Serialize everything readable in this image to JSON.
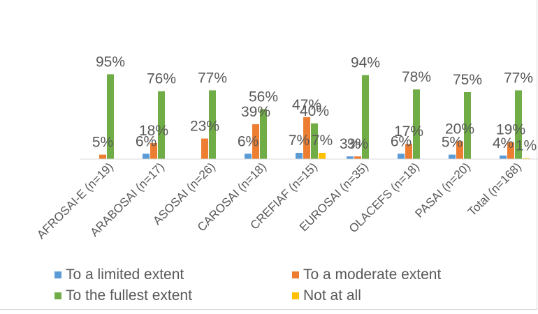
{
  "chart_data": {
    "type": "bar",
    "categories": [
      "AFROSAI-E (n=19)",
      "ARABOSAI (n=17)",
      "ASOSAI (n=26)",
      "CAROSAI (n=18)",
      "CREFIAF (n=15)",
      "EUROSAI (n=35)",
      "OLACEFS (n=18)",
      "PASAI (n=20)",
      "Total (n=168)"
    ],
    "ylim": [
      0,
      100
    ],
    "grid": false,
    "legend_position": "bottom",
    "series": [
      {
        "name": "To a limited extent",
        "color": "#5b9bd5",
        "values": [
          0,
          6,
          0,
          6,
          7,
          3,
          6,
          5,
          4
        ],
        "labels": [
          "",
          "6%",
          "",
          "6%",
          "7%",
          "3%",
          "6%",
          "5%",
          "4%"
        ]
      },
      {
        "name": "To a moderate extent",
        "color": "#ed7d31",
        "values": [
          5,
          18,
          23,
          39,
          47,
          3,
          17,
          20,
          19
        ],
        "labels": [
          "5%",
          "18%",
          "23%",
          "39%",
          "47%",
          "3%",
          "17%",
          "20%",
          "19%"
        ]
      },
      {
        "name": "To the fullest extent",
        "color": "#70ad47",
        "values": [
          95,
          76,
          77,
          56,
          40,
          94,
          78,
          75,
          77
        ],
        "labels": [
          "95%",
          "76%",
          "77%",
          "56%",
          "40%",
          "94%",
          "78%",
          "75%",
          "77%"
        ]
      },
      {
        "name": "Not at all",
        "color": "#ffc000",
        "values": [
          0,
          0,
          0,
          0,
          7,
          0,
          0,
          0,
          1
        ],
        "labels": [
          "",
          "",
          "",
          "",
          "7%",
          "",
          "",
          "",
          "1%"
        ]
      }
    ]
  }
}
